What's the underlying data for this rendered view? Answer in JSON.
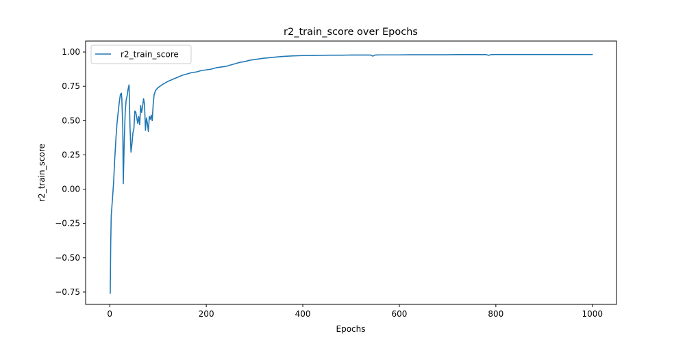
{
  "chart_data": {
    "type": "line",
    "title": "r2_train_score over Epochs",
    "xlabel": "Epochs",
    "ylabel": "r2_train_score",
    "xlim": [
      -50,
      1050
    ],
    "ylim": [
      -0.84,
      1.08
    ],
    "xticks": [
      0,
      200,
      400,
      600,
      800,
      1000
    ],
    "xtick_labels": [
      "0",
      "200",
      "400",
      "600",
      "800",
      "1000"
    ],
    "yticks": [
      -0.75,
      -0.5,
      -0.25,
      0.0,
      0.25,
      0.5,
      0.75,
      1.0
    ],
    "ytick_labels": [
      "−0.75",
      "−0.50",
      "−0.25",
      "0.00",
      "0.25",
      "0.50",
      "0.75",
      "1.00"
    ],
    "grid": false,
    "legend": {
      "placement": "top-left",
      "entries": [
        "r2_train_score"
      ]
    },
    "series": [
      {
        "name": "r2_train_score",
        "color": "#1f77b4",
        "x": [
          1,
          2,
          3,
          5,
          8,
          10,
          13,
          15,
          18,
          20,
          22,
          24,
          25,
          27,
          28,
          30,
          32,
          34,
          36,
          38,
          40,
          42,
          44,
          46,
          48,
          50,
          52,
          54,
          56,
          58,
          60,
          62,
          64,
          66,
          68,
          70,
          72,
          74,
          76,
          78,
          80,
          82,
          84,
          86,
          88,
          90,
          92,
          95,
          100,
          110,
          120,
          130,
          140,
          150,
          160,
          170,
          180,
          190,
          200,
          210,
          220,
          230,
          240,
          250,
          260,
          270,
          280,
          290,
          300,
          310,
          320,
          330,
          340,
          350,
          360,
          370,
          380,
          390,
          400,
          420,
          440,
          460,
          480,
          500,
          520,
          540,
          545,
          550,
          560,
          580,
          600,
          620,
          640,
          660,
          680,
          700,
          720,
          740,
          760,
          780,
          785,
          790,
          800,
          850,
          900,
          950,
          1000
        ],
        "y": [
          -0.76,
          -0.4,
          -0.2,
          -0.1,
          0.05,
          0.2,
          0.38,
          0.48,
          0.58,
          0.64,
          0.69,
          0.7,
          0.66,
          0.45,
          0.04,
          0.35,
          0.56,
          0.65,
          0.68,
          0.73,
          0.76,
          0.45,
          0.27,
          0.33,
          0.41,
          0.44,
          0.57,
          0.56,
          0.52,
          0.48,
          0.53,
          0.47,
          0.61,
          0.56,
          0.6,
          0.66,
          0.62,
          0.43,
          0.52,
          0.48,
          0.42,
          0.53,
          0.51,
          0.54,
          0.5,
          0.62,
          0.69,
          0.72,
          0.74,
          0.765,
          0.785,
          0.8,
          0.815,
          0.83,
          0.84,
          0.85,
          0.855,
          0.865,
          0.87,
          0.875,
          0.885,
          0.89,
          0.895,
          0.905,
          0.915,
          0.925,
          0.93,
          0.94,
          0.945,
          0.95,
          0.955,
          0.958,
          0.962,
          0.965,
          0.968,
          0.97,
          0.972,
          0.973,
          0.974,
          0.975,
          0.976,
          0.977,
          0.977,
          0.978,
          0.978,
          0.978,
          0.97,
          0.978,
          0.979,
          0.979,
          0.979,
          0.98,
          0.98,
          0.98,
          0.98,
          0.98,
          0.981,
          0.981,
          0.981,
          0.981,
          0.976,
          0.981,
          0.982,
          0.982,
          0.982,
          0.982,
          0.982
        ]
      }
    ]
  }
}
